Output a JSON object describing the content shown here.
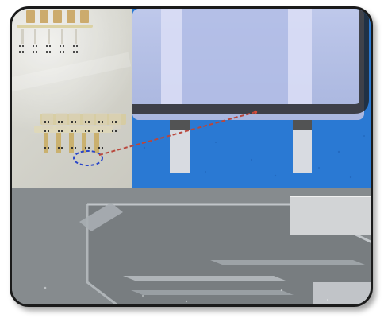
{
  "figure": {
    "panels": [
      {
        "name": "device-array-photo",
        "kind": "photograph"
      },
      {
        "name": "optical-micrograph",
        "kind": "microscope-image"
      },
      {
        "name": "sem-image",
        "kind": "electron-micrograph"
      }
    ],
    "colors": {
      "frame_border": "#1b1b1b",
      "photo_background": "#d8d7cf",
      "device_gold": "#c9ad65",
      "microscope_blue": "#2a79d3",
      "membrane_lavender": "#b8c3e7",
      "sem_gray": "#868b8e",
      "blue_dashed_marker": "#2b47c9",
      "red_dashed_connector": "#b9473c"
    }
  }
}
